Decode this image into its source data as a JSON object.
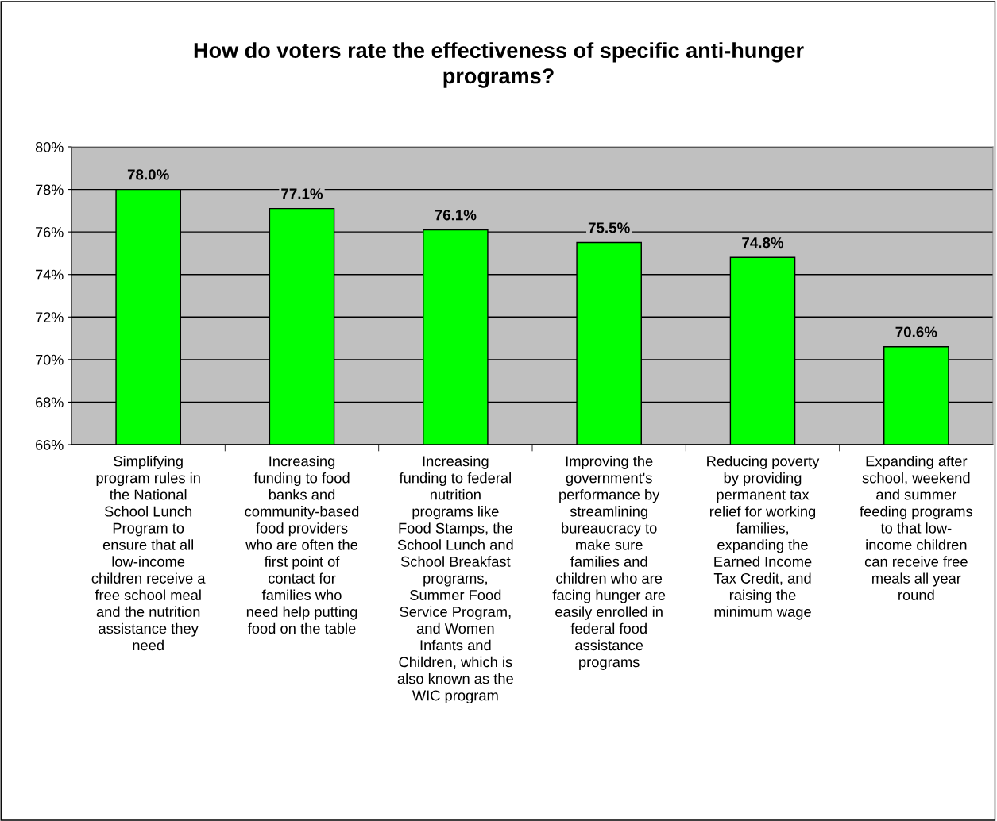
{
  "chart_data": {
    "type": "bar",
    "title": "How do voters rate the effectiveness of specific anti-hunger\nprograms?",
    "categories": [
      "Simplifying\nprogram rules in\nthe National\nSchool Lunch\nProgram to\nensure that all\nlow-income\nchildren receive a\nfree school meal\nand the nutrition\nassistance they\nneed",
      "Increasing\nfunding to food\nbanks and\ncommunity-based\nfood providers\nwho are often the\nfirst point of\ncontact for\nfamilies who\nneed help putting\nfood on the table",
      "Increasing\nfunding to federal\nnutrition\nprograms like\nFood Stamps, the\nSchool Lunch and\nSchool Breakfast\nprograms,\nSummer Food\nService Program,\nand Women\nInfants and\nChildren, which is\nalso known as the\nWIC program",
      "Improving the\ngovernment's\nperformance by\nstreamlining\nbureaucracy to\nmake sure\nfamilies and\nchildren who are\nfacing hunger are\neasily enrolled in\nfederal food\nassistance\nprograms",
      "Reducing poverty\nby providing\npermanent tax\nrelief for working\nfamilies,\nexpanding the\nEarned Income\nTax Credit, and\nraising the\nminimum wage",
      "Expanding after\nschool, weekend\nand summer\nfeeding programs\nto that low-\nincome children\ncan receive free\nmeals all year\nround"
    ],
    "values": [
      78.0,
      77.1,
      76.1,
      75.5,
      74.8,
      70.6
    ],
    "value_labels": [
      "78.0%",
      "77.1%",
      "76.1%",
      "75.5%",
      "74.8%",
      "70.6%"
    ],
    "color": "#00ff00",
    "ylim": [
      66,
      80
    ],
    "yticks": [
      {
        "value": 66,
        "label": "66%"
      },
      {
        "value": 68,
        "label": "68%"
      },
      {
        "value": 70,
        "label": "70%"
      },
      {
        "value": 72,
        "label": "72%"
      },
      {
        "value": 74,
        "label": "74%"
      },
      {
        "value": 76,
        "label": "76%"
      },
      {
        "value": 78,
        "label": "78%"
      },
      {
        "value": 80,
        "label": "80%"
      }
    ],
    "grid": "y",
    "legend": false
  }
}
